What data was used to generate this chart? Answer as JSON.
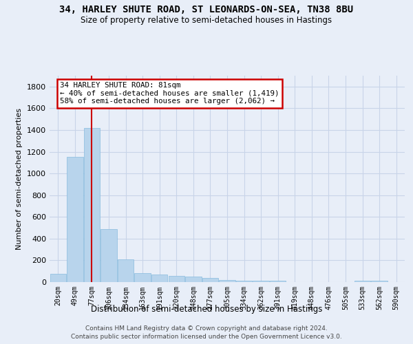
{
  "title": "34, HARLEY SHUTE ROAD, ST LEONARDS-ON-SEA, TN38 8BU",
  "subtitle": "Size of property relative to semi-detached houses in Hastings",
  "xlabel": "Distribution of semi-detached houses by size in Hastings",
  "ylabel": "Number of semi-detached properties",
  "footer_line1": "Contains HM Land Registry data © Crown copyright and database right 2024.",
  "footer_line2": "Contains public sector information licensed under the Open Government Licence v3.0.",
  "categories": [
    "20sqm",
    "49sqm",
    "77sqm",
    "106sqm",
    "134sqm",
    "163sqm",
    "191sqm",
    "220sqm",
    "248sqm",
    "277sqm",
    "305sqm",
    "334sqm",
    "362sqm",
    "391sqm",
    "419sqm",
    "448sqm",
    "476sqm",
    "505sqm",
    "533sqm",
    "562sqm",
    "590sqm"
  ],
  "values": [
    75,
    1150,
    1420,
    490,
    210,
    80,
    70,
    60,
    50,
    35,
    20,
    15,
    15,
    15,
    0,
    0,
    0,
    0,
    15,
    15,
    0
  ],
  "bar_color": "#b8d4ec",
  "bar_edge_color": "#88bbdd",
  "grid_color": "#c8d4e8",
  "bg_color": "#e8eef8",
  "property_bin_index": 2,
  "annotation_text_line1": "34 HARLEY SHUTE ROAD: 81sqm",
  "annotation_text_line2": "← 40% of semi-detached houses are smaller (1,419)",
  "annotation_text_line3": "58% of semi-detached houses are larger (2,062) →",
  "vline_color": "#cc0000",
  "annotation_box_color": "#ffffff",
  "annotation_box_edge": "#cc0000",
  "ylim": [
    0,
    1900
  ],
  "yticks": [
    0,
    200,
    400,
    600,
    800,
    1000,
    1200,
    1400,
    1600,
    1800
  ]
}
